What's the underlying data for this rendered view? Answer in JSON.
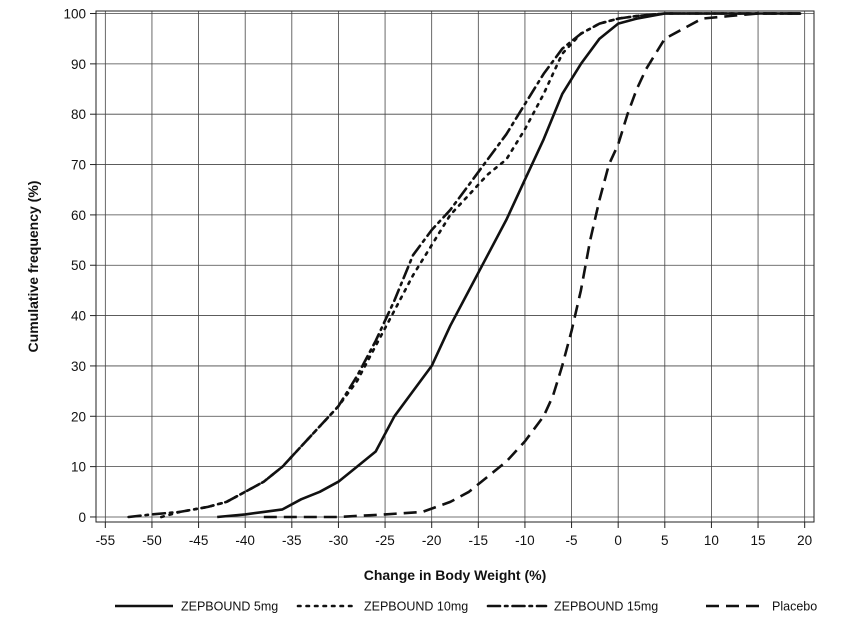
{
  "chart_data": {
    "type": "line",
    "title": "",
    "xlabel": "Change in Body Weight (%)",
    "ylabel": "Cumulative frequency (%)",
    "xlim": [
      -56,
      21
    ],
    "ylim": [
      -1,
      100.5
    ],
    "xticks": [
      "-55",
      "-50",
      "-45",
      "-40",
      "-35",
      "-30",
      "-25",
      "-20",
      "-15",
      "-10",
      "-5",
      "0",
      "5",
      "10",
      "15",
      "20"
    ],
    "yticks": [
      "0",
      "10",
      "20",
      "30",
      "40",
      "50",
      "60",
      "70",
      "80",
      "90",
      "100"
    ],
    "grid": true,
    "legend_position": "bottom",
    "series": [
      {
        "name": "ZEPBOUND 5mg",
        "style": "solid",
        "color": "#111111",
        "points": [
          [
            -43,
            0
          ],
          [
            -40,
            0.5
          ],
          [
            -38,
            1
          ],
          [
            -36,
            1.5
          ],
          [
            -34,
            3.5
          ],
          [
            -32,
            5
          ],
          [
            -30,
            7
          ],
          [
            -28,
            10
          ],
          [
            -26,
            13
          ],
          [
            -24,
            20
          ],
          [
            -22,
            25
          ],
          [
            -20,
            30
          ],
          [
            -18,
            38
          ],
          [
            -16,
            45
          ],
          [
            -14,
            52
          ],
          [
            -12,
            59
          ],
          [
            -10,
            67
          ],
          [
            -8,
            75
          ],
          [
            -6,
            84
          ],
          [
            -4,
            90
          ],
          [
            -2,
            95
          ],
          [
            0,
            98
          ],
          [
            2,
            99
          ],
          [
            5,
            100
          ],
          [
            10,
            100
          ],
          [
            15,
            100
          ],
          [
            19.5,
            100
          ]
        ]
      },
      {
        "name": "ZEPBOUND 10mg",
        "style": "dotted",
        "color": "#111111",
        "points": [
          [
            -49,
            0
          ],
          [
            -47,
            1
          ],
          [
            -44,
            2
          ],
          [
            -42,
            3
          ],
          [
            -40,
            5
          ],
          [
            -38,
            7
          ],
          [
            -36,
            10
          ],
          [
            -34,
            14
          ],
          [
            -32,
            18
          ],
          [
            -30,
            22
          ],
          [
            -28,
            27
          ],
          [
            -26,
            34
          ],
          [
            -24,
            41
          ],
          [
            -22,
            48
          ],
          [
            -20,
            54
          ],
          [
            -18,
            60
          ],
          [
            -16,
            64
          ],
          [
            -14,
            68
          ],
          [
            -12,
            71
          ],
          [
            -10,
            77
          ],
          [
            -8,
            84
          ],
          [
            -6,
            92
          ],
          [
            -4,
            96
          ],
          [
            -2,
            98
          ],
          [
            0,
            99
          ],
          [
            2,
            99.5
          ],
          [
            5,
            100
          ],
          [
            10,
            100
          ],
          [
            15,
            100
          ],
          [
            19.5,
            100
          ]
        ]
      },
      {
        "name": "ZEPBOUND 15mg",
        "style": "dashdot",
        "color": "#111111",
        "points": [
          [
            -52.5,
            0
          ],
          [
            -50,
            0.5
          ],
          [
            -47,
            1
          ],
          [
            -44,
            2
          ],
          [
            -42,
            3
          ],
          [
            -40,
            5
          ],
          [
            -38,
            7
          ],
          [
            -36,
            10
          ],
          [
            -34,
            14
          ],
          [
            -32,
            18
          ],
          [
            -30,
            22
          ],
          [
            -28,
            28
          ],
          [
            -26,
            35
          ],
          [
            -24,
            43
          ],
          [
            -22,
            52
          ],
          [
            -20,
            57
          ],
          [
            -18,
            61
          ],
          [
            -16,
            66
          ],
          [
            -14,
            71
          ],
          [
            -12,
            76
          ],
          [
            -10,
            82
          ],
          [
            -8,
            88
          ],
          [
            -6,
            93
          ],
          [
            -4,
            96
          ],
          [
            -2,
            98
          ],
          [
            0,
            99
          ],
          [
            2,
            99.5
          ],
          [
            5,
            100
          ],
          [
            10,
            100
          ],
          [
            15,
            100
          ],
          [
            19.5,
            100
          ]
        ]
      },
      {
        "name": "Placebo",
        "style": "dashed",
        "color": "#111111",
        "points": [
          [
            -38,
            0
          ],
          [
            -30,
            0
          ],
          [
            -25,
            0.5
          ],
          [
            -21,
            1
          ],
          [
            -18,
            3
          ],
          [
            -16,
            5
          ],
          [
            -14,
            8
          ],
          [
            -12,
            11
          ],
          [
            -10,
            15
          ],
          [
            -8,
            20
          ],
          [
            -7,
            24
          ],
          [
            -6,
            30
          ],
          [
            -5,
            37
          ],
          [
            -4,
            45
          ],
          [
            -3,
            55
          ],
          [
            -2,
            63
          ],
          [
            -1,
            70
          ],
          [
            0,
            74
          ],
          [
            1,
            80
          ],
          [
            2,
            85
          ],
          [
            3,
            89
          ],
          [
            4,
            92
          ],
          [
            5,
            95
          ],
          [
            7,
            97
          ],
          [
            9,
            99
          ],
          [
            12,
            99.5
          ],
          [
            15,
            100
          ],
          [
            19.5,
            100
          ]
        ]
      }
    ]
  }
}
